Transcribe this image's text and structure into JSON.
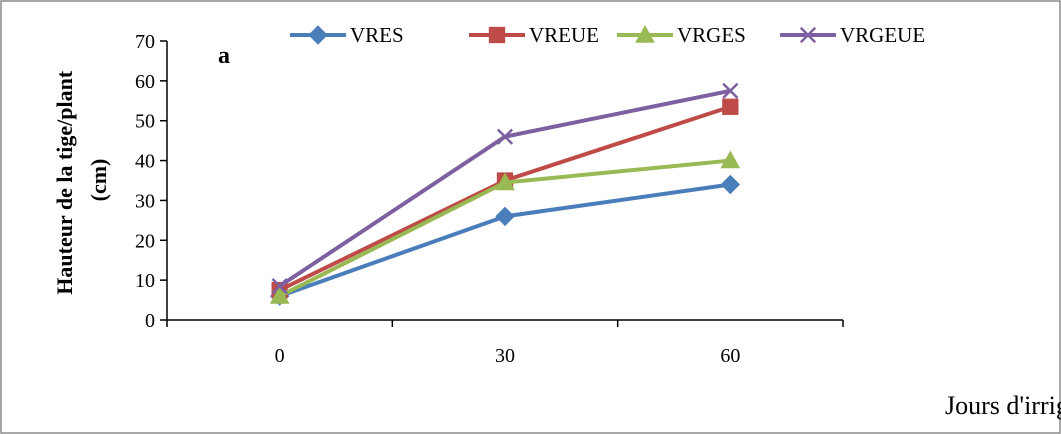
{
  "chart_data": {
    "type": "line",
    "panel_label": "a",
    "x": [
      0,
      30,
      60
    ],
    "x_tick_labels": [
      "0",
      "30",
      "60"
    ],
    "xlabel": "Jours d'irrigation",
    "ylabel_line1": "Hauteur de la tige/plant",
    "ylabel_line2": "(cm)",
    "ylim": [
      0,
      70
    ],
    "y_ticks": [
      0,
      10,
      20,
      30,
      40,
      50,
      60,
      70
    ],
    "grid": false,
    "legend_position": "top",
    "series": [
      {
        "name": "VRES",
        "values": [
          6,
          26,
          34
        ],
        "color": "#4a7ebb",
        "marker": "diamond"
      },
      {
        "name": "VREUE",
        "values": [
          7.5,
          35,
          53.5
        ],
        "color": "#be4b48",
        "marker": "square"
      },
      {
        "name": "VRGES",
        "values": [
          6,
          34.5,
          40
        ],
        "color": "#98b954",
        "marker": "triangle"
      },
      {
        "name": "VRGEUE",
        "values": [
          8.5,
          46,
          57.5
        ],
        "color": "#7d60a0",
        "marker": "x"
      }
    ]
  }
}
